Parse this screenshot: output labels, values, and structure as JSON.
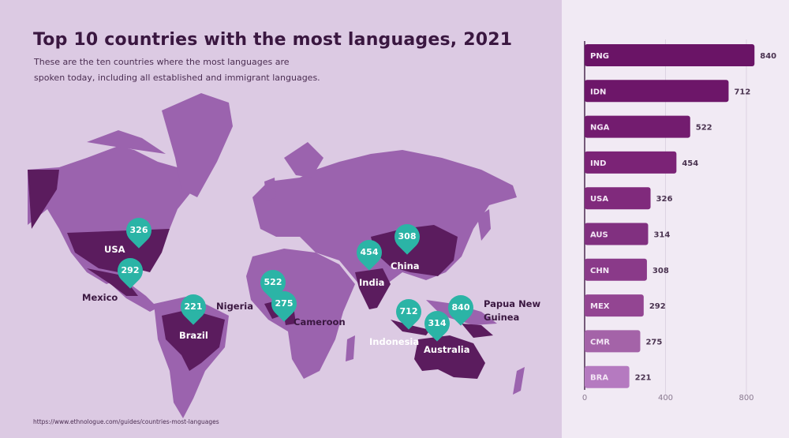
{
  "title": "Top 10 countries with the most languages, 2021",
  "subtitle_line1": "These are the ten countries where the most languages are",
  "subtitle_line2": "spoken today, including all established and immigrant languages.",
  "source": "https://www.ethnologue.com/guides/countries-most-languages",
  "colors": {
    "bg": "#dccae3",
    "land": "#9b63ae",
    "highlight": "#5b1c5e",
    "pin": "#2bb4a6",
    "bar_top": "#6a1466",
    "bar_bottom": "#b57ac0"
  },
  "map_pins": [
    {
      "country": "USA",
      "value": "326"
    },
    {
      "country": "Mexico",
      "value": "292"
    },
    {
      "country": "Brazil",
      "value": "221"
    },
    {
      "country": "Nigeria",
      "value": "522"
    },
    {
      "country": "Cameroon",
      "value": "275"
    },
    {
      "country": "India",
      "value": "454"
    },
    {
      "country": "China",
      "value": "308"
    },
    {
      "country": "Indonesia",
      "value": "712"
    },
    {
      "country": "Australia",
      "value": "314"
    },
    {
      "country": "Papua New Guinea",
      "value": "840"
    }
  ],
  "map_labels": {
    "usa": "USA",
    "mexico": "Mexico",
    "brazil": "Brazil",
    "nigeria": "Nigeria",
    "cameroon": "Cameroon",
    "india": "India",
    "china": "China",
    "indonesia": "Indonesia",
    "australia": "Australia",
    "png1": "Papua New",
    "png2": "Guinea"
  },
  "chart_data": {
    "type": "bar",
    "orientation": "horizontal",
    "categories": [
      "PNG",
      "IDN",
      "NGA",
      "IND",
      "USA",
      "AUS",
      "CHN",
      "MEX",
      "CMR",
      "BRA"
    ],
    "values": [
      840,
      712,
      522,
      454,
      326,
      314,
      308,
      292,
      275,
      221
    ],
    "xlim": [
      0,
      860
    ],
    "xticks": [
      0,
      400,
      800
    ],
    "grid": true,
    "title": "Top 10 countries with the most languages, 2021"
  }
}
